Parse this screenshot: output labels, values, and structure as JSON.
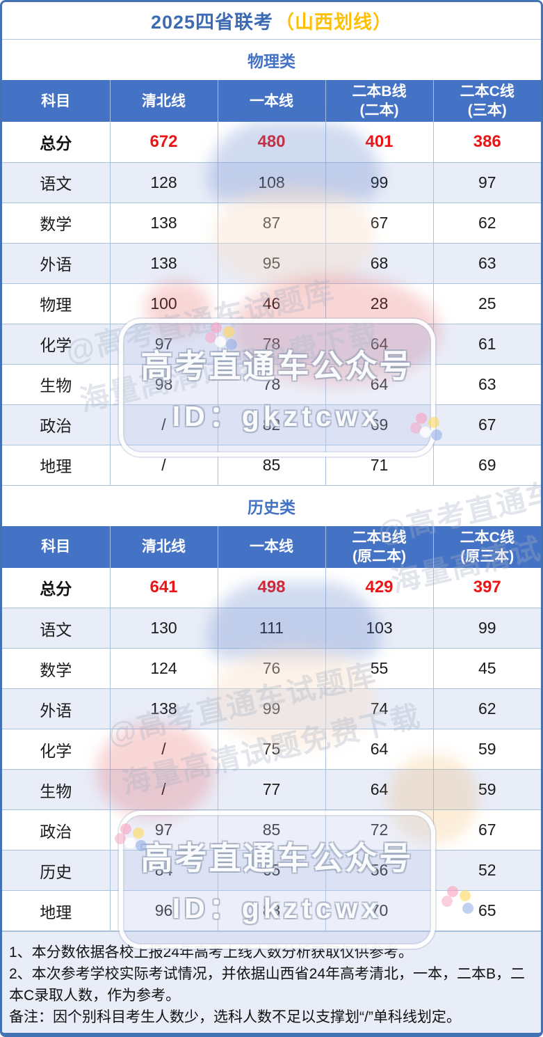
{
  "title": {
    "main": "2025四省联考",
    "highlight": "（山西划线）"
  },
  "colors": {
    "frame_border": "#4272B4",
    "title_blue": "#3D6BB3",
    "title_yellow": "#FFC000",
    "header_bg": "#4472C4",
    "row_alt_bg": "#E9EDF8",
    "grid_line": "#A9C3DF",
    "total_red": "#EC1414",
    "notes_bg": "#E9EDF7"
  },
  "tables": [
    {
      "section_title": "物理类",
      "headers": [
        [
          "科目"
        ],
        [
          "清北线"
        ],
        [
          "一本线"
        ],
        [
          "二本B线",
          "(二本)"
        ],
        [
          "二本C线",
          "(三本)"
        ]
      ],
      "rows": [
        {
          "label": "总分",
          "values": [
            "672",
            "480",
            "401",
            "386"
          ],
          "highlight": true
        },
        {
          "label": "语文",
          "values": [
            "128",
            "108",
            "99",
            "97"
          ]
        },
        {
          "label": "数学",
          "values": [
            "138",
            "87",
            "67",
            "62"
          ]
        },
        {
          "label": "外语",
          "values": [
            "138",
            "95",
            "68",
            "63"
          ]
        },
        {
          "label": "物理",
          "values": [
            "100",
            "46",
            "28",
            "25"
          ]
        },
        {
          "label": "化学",
          "values": [
            "97",
            "78",
            "64",
            "61"
          ]
        },
        {
          "label": "生物",
          "values": [
            "98",
            "78",
            "64",
            "63"
          ]
        },
        {
          "label": "政治",
          "values": [
            "/",
            "82",
            "69",
            "67"
          ]
        },
        {
          "label": "地理",
          "values": [
            "/",
            "85",
            "71",
            "69"
          ]
        }
      ]
    },
    {
      "section_title": "历史类",
      "headers": [
        [
          "科目"
        ],
        [
          "清北线"
        ],
        [
          "一本线"
        ],
        [
          "二本B线",
          "(原二本)"
        ],
        [
          "二本C线",
          "(原三本)"
        ]
      ],
      "rows": [
        {
          "label": "总分",
          "values": [
            "641",
            "498",
            "429",
            "397"
          ],
          "highlight": true
        },
        {
          "label": "语文",
          "values": [
            "130",
            "111",
            "103",
            "99"
          ]
        },
        {
          "label": "数学",
          "values": [
            "124",
            "76",
            "55",
            "45"
          ]
        },
        {
          "label": "外语",
          "values": [
            "138",
            "99",
            "74",
            "62"
          ]
        },
        {
          "label": "化学",
          "values": [
            "/",
            "75",
            "64",
            "59"
          ]
        },
        {
          "label": "生物",
          "values": [
            "/",
            "77",
            "64",
            "59"
          ]
        },
        {
          "label": "政治",
          "values": [
            "97",
            "85",
            "72",
            "67"
          ]
        },
        {
          "label": "历史",
          "values": [
            "84",
            "65",
            "56",
            "52"
          ]
        },
        {
          "label": "地理",
          "values": [
            "96",
            "83",
            "70",
            "65"
          ]
        }
      ]
    }
  ],
  "watermark": {
    "badge_line1": "高考直通车公众号",
    "badge_line2": "ID：gkztcwx",
    "diag_line1": "@高考直通车试题库",
    "diag_line2": "海量高清试题免费下载"
  },
  "notes": [
    "1、本分数依据各校上报24年高考上线人数分析获取仅供参考。",
    "2、本次参考学校实际考试情况，并依据山西省24年高考清北，一本，二本B，二本C录取人数，作为参考。",
    "备注：因个别科目考生人数少，选科人数不足以支撑划“/”单科线划定。"
  ]
}
